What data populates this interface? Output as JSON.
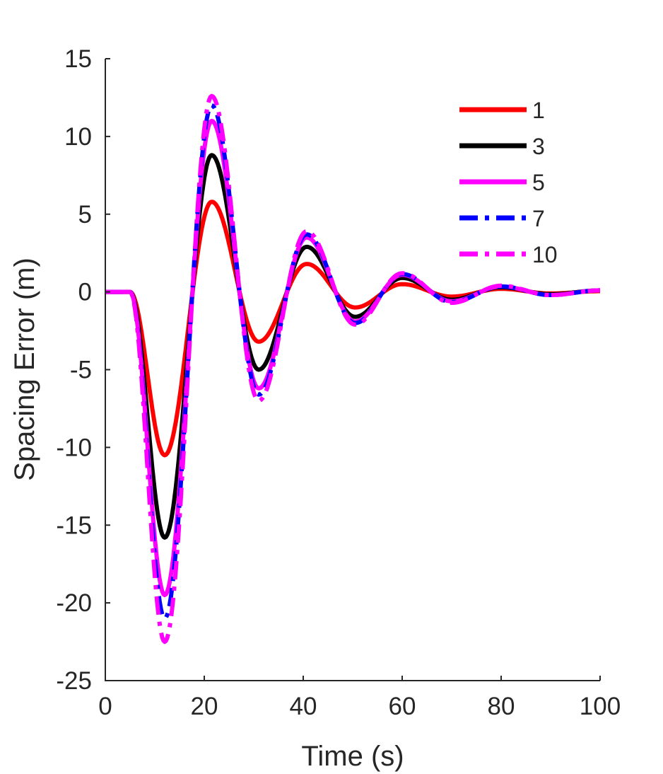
{
  "chart_data": {
    "type": "line",
    "title": "",
    "xlabel": "Time (s)",
    "ylabel": "Spacing Error (m)",
    "xlim": [
      0,
      100
    ],
    "ylim": [
      -25,
      15
    ],
    "xticks": [
      0,
      20,
      40,
      60,
      80,
      100
    ],
    "yticks": [
      -25,
      -20,
      -15,
      -10,
      -5,
      0,
      5,
      10,
      15
    ],
    "xtick_labels": [
      "0",
      "20",
      "40",
      "60",
      "80",
      "100"
    ],
    "ytick_labels": [
      "-25",
      "-20",
      "-15",
      "-10",
      "-5",
      "0",
      "5",
      "10",
      "15"
    ],
    "grid": false,
    "legend_position": "top-right",
    "series": [
      {
        "name": "1",
        "color": "#ff0000",
        "style": "solid",
        "extremes": [
          [
            12,
            -10.5
          ],
          [
            21.5,
            5.8
          ],
          [
            31,
            -3.2
          ],
          [
            40.7,
            1.8
          ],
          [
            50.5,
            -1.0
          ],
          [
            60,
            0.5
          ],
          [
            70,
            -0.3
          ],
          [
            80,
            0.2
          ],
          [
            90,
            -0.1
          ],
          [
            100,
            0.05
          ]
        ]
      },
      {
        "name": "3",
        "color": "#000000",
        "style": "solid",
        "extremes": [
          [
            12,
            -15.8
          ],
          [
            21.5,
            8.8
          ],
          [
            31,
            -5.0
          ],
          [
            40.7,
            2.9
          ],
          [
            50.5,
            -1.6
          ],
          [
            60,
            0.9
          ],
          [
            70,
            -0.5
          ],
          [
            80,
            0.3
          ],
          [
            90,
            -0.15
          ],
          [
            100,
            0.1
          ]
        ]
      },
      {
        "name": "5",
        "color": "#ff00ff",
        "style": "solid",
        "extremes": [
          [
            12,
            -19.5
          ],
          [
            21.5,
            11.0
          ],
          [
            31,
            -6.2
          ],
          [
            40.7,
            3.5
          ],
          [
            50.5,
            -1.9
          ],
          [
            60,
            1.1
          ],
          [
            70,
            -0.6
          ],
          [
            80,
            0.35
          ],
          [
            90,
            -0.2
          ],
          [
            100,
            0.1
          ]
        ]
      },
      {
        "name": "7",
        "color": "#0000ff",
        "style": "dashdot",
        "extremes": [
          [
            12,
            -21.0
          ],
          [
            21.5,
            12.0
          ],
          [
            31,
            -6.6
          ],
          [
            40.7,
            3.7
          ],
          [
            50.5,
            -2.0
          ],
          [
            60,
            1.15
          ],
          [
            70,
            -0.65
          ],
          [
            80,
            0.35
          ],
          [
            90,
            -0.2
          ],
          [
            100,
            0.1
          ]
        ]
      },
      {
        "name": "10",
        "color": "#ff00ff",
        "style": "dashdot",
        "extremes": [
          [
            12,
            -22.5
          ],
          [
            21.5,
            12.6
          ],
          [
            31,
            -7.0
          ],
          [
            40.7,
            3.9
          ],
          [
            50.5,
            -2.1
          ],
          [
            60,
            1.2
          ],
          [
            70,
            -0.7
          ],
          [
            80,
            0.4
          ],
          [
            90,
            -0.2
          ],
          [
            100,
            0.1
          ]
        ]
      }
    ]
  }
}
